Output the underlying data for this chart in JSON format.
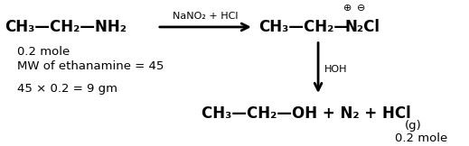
{
  "bg_color": "#ffffff",
  "text_color": "#000000",
  "figsize": [
    5.19,
    1.62
  ],
  "dpi": 100,
  "reactant": "CH₃—CH₂—NH₂",
  "reagent": "NaNO₂ + HCl",
  "product1_left": "CH₃—CH₂—",
  "product1_right": "N₂Cl",
  "charge_plus": "⊕",
  "charge_minus": "⊖",
  "hoh_label": "HOH",
  "product2": "CH₃—CH₂—OH + N₂ + HCl",
  "product2_g": "(g)",
  "product2_mole": "0.2 mole",
  "info1": "0.2 mole",
  "info2": "MW of ethanamine = 45",
  "info3": "45 × 0.2 = 9 gm",
  "font_size_main": 12,
  "font_size_small": 9.5,
  "font_size_reagent": 8,
  "font_size_charge": 8
}
